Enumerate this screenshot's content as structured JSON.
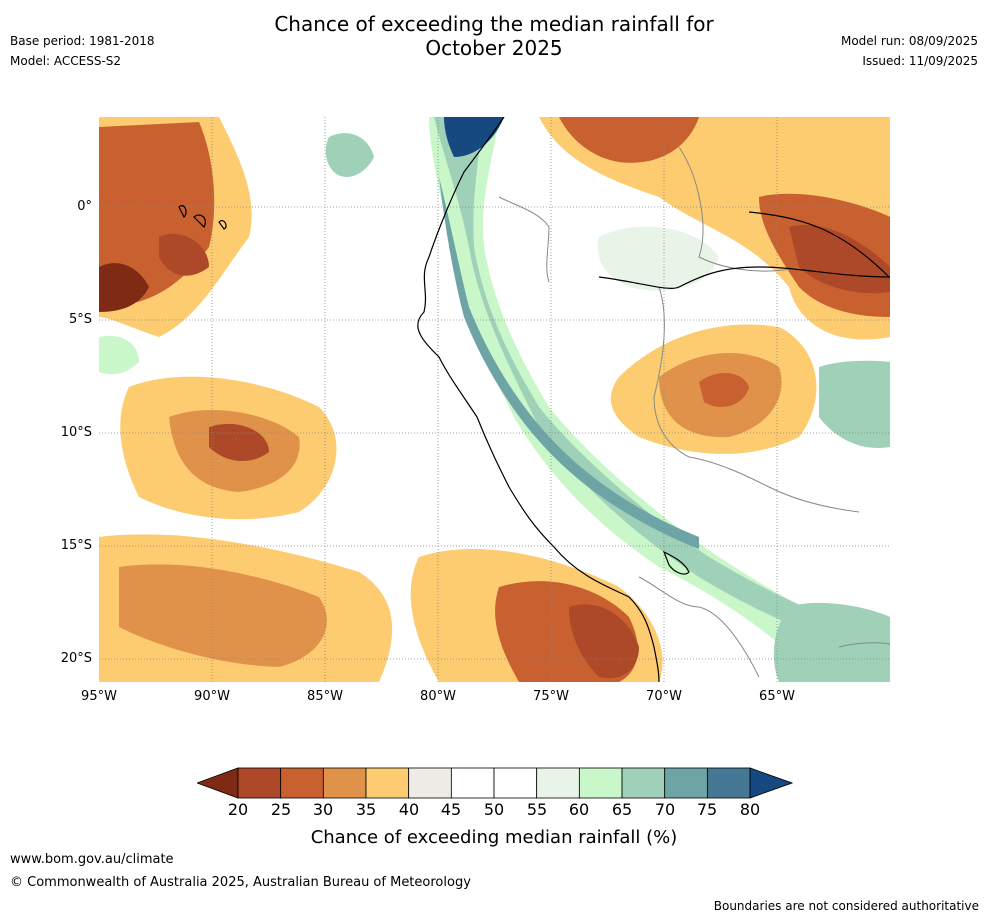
{
  "title": {
    "line1": "Chance of exceeding the median rainfall for",
    "line2": "October 2025"
  },
  "meta": {
    "base_period": "Base period: 1981-2018",
    "model": "Model: ACCESS-S2",
    "model_run": "Model run: 08/09/2025",
    "issued": "Issued: 11/09/2025"
  },
  "map": {
    "y_ticks": [
      "0°",
      "5°S",
      "10°S",
      "15°S",
      "20°S"
    ],
    "x_ticks": [
      "95°W",
      "90°W",
      "85°W",
      "80°W",
      "75°W",
      "70°W",
      "65°W"
    ],
    "grid": "dotted"
  },
  "colorbar": {
    "label": "Chance of exceeding median rainfall (%)",
    "ticks": [
      "20",
      "25",
      "30",
      "35",
      "40",
      "45",
      "50",
      "55",
      "60",
      "65",
      "70",
      "75",
      "80"
    ],
    "colors": {
      "below_20": "#7f2a14",
      "20_25": "#ad4828",
      "25_30": "#c8602f",
      "30_35": "#e0924a",
      "35_40": "#fdcc70",
      "40_45": "#efebe6",
      "45_50": "#ffffff",
      "50_55": "#ffffff",
      "55_60": "#e9f4e9",
      "60_65": "#c9f7c9",
      "65_70": "#9fd0b8",
      "70_75": "#6fa4a6",
      "75_80": "#457894",
      "above_80": "#15497f"
    }
  },
  "footer": {
    "url": "www.bom.gov.au/climate",
    "copyright": "© Commonwealth of Australia 2025, Australian Bureau of Meteorology",
    "note": "Boundaries are not considered authoritative"
  }
}
